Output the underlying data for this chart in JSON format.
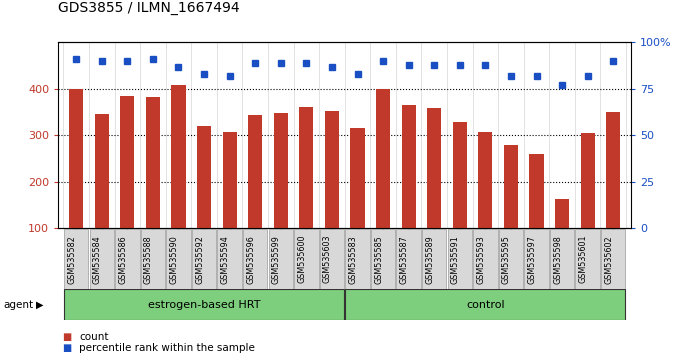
{
  "title": "GDS3855 / ILMN_1667494",
  "categories": [
    "GSM535582",
    "GSM535584",
    "GSM535586",
    "GSM535588",
    "GSM535590",
    "GSM535592",
    "GSM535594",
    "GSM535596",
    "GSM535599",
    "GSM535600",
    "GSM535603",
    "GSM535583",
    "GSM535585",
    "GSM535587",
    "GSM535589",
    "GSM535591",
    "GSM535593",
    "GSM535595",
    "GSM535597",
    "GSM535598",
    "GSM535601",
    "GSM535602"
  ],
  "bar_values": [
    400,
    347,
    385,
    383,
    408,
    320,
    307,
    344,
    348,
    362,
    352,
    317,
    400,
    365,
    358,
    328,
    308,
    280,
    260,
    163,
    305,
    350
  ],
  "percentile_values": [
    91,
    90,
    90,
    91,
    87,
    83,
    82,
    89,
    89,
    89,
    87,
    83,
    90,
    88,
    88,
    88,
    88,
    82,
    82,
    77,
    82,
    90
  ],
  "bar_color": "#c0392b",
  "percentile_color": "#1a4fc4",
  "ylim_left": [
    100,
    500
  ],
  "ylim_right": [
    0,
    100
  ],
  "yticks_left": [
    100,
    200,
    300,
    400,
    500
  ],
  "yticks_right": [
    0,
    25,
    50,
    75,
    100
  ],
  "group1_label": "estrogen-based HRT",
  "group1_count": 11,
  "group2_label": "control",
  "group2_count": 11,
  "group1_color": "#7dce7d",
  "group2_color": "#7dce7d",
  "legend_count_label": "count",
  "legend_percentile_label": "percentile rank within the sample"
}
